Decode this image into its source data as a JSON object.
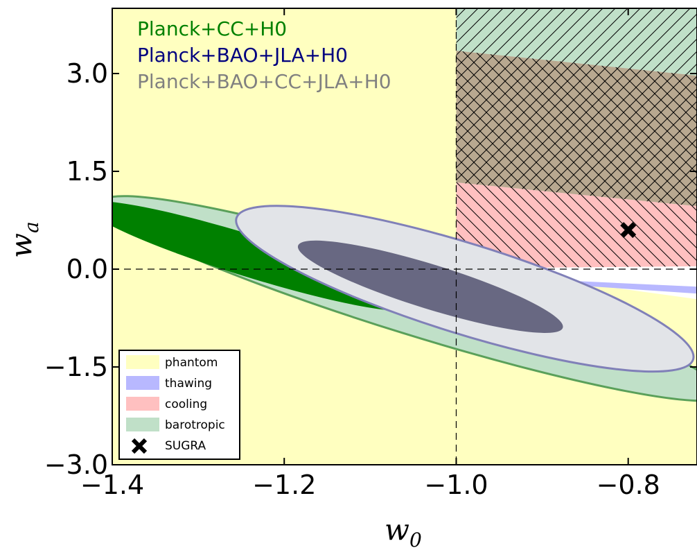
{
  "chart_data": {
    "type": "contour",
    "xlabel": "w",
    "xlabel_sub": "0",
    "ylabel": "w",
    "ylabel_sub": "a",
    "xlim": [
      -1.4,
      -0.72
    ],
    "ylim": [
      -3.0,
      4.0
    ],
    "x_ticks": [
      -1.4,
      -1.2,
      -1.0,
      -0.8
    ],
    "x_tick_labels": [
      "−1.4",
      "−1.2",
      "−1.0",
      "−0.8"
    ],
    "y_ticks": [
      -3.0,
      -1.5,
      0.0,
      1.5,
      3.0
    ],
    "y_tick_labels": [
      "−3.0",
      "−1.5",
      "0.0",
      "1.5",
      "3.0"
    ],
    "reference_lines": {
      "x": -1.0,
      "y": 0.0,
      "style": "dashed"
    },
    "annotations": [
      {
        "text": "Planck+CC+H0",
        "color": "#008000"
      },
      {
        "text": "Planck+BAO+JLA+H0",
        "color": "#00007f"
      },
      {
        "text": "Planck+BAO+CC+JLA+H0",
        "color": "#808080"
      }
    ],
    "regions": [
      {
        "name": "phantom",
        "color": "#ffffc0",
        "description": "w0 < -1 and lower region"
      },
      {
        "name": "thawing",
        "color": "#b8b8ff"
      },
      {
        "name": "cooling",
        "color": "#ffc0c0",
        "hatch": "backslash"
      },
      {
        "name": "barotropic",
        "color": "#c0e0c8",
        "hatch": "slash"
      }
    ],
    "legend": {
      "placement": "lower-left",
      "entries": [
        {
          "label": "phantom",
          "swatch": "#ffffc0",
          "kind": "patch"
        },
        {
          "label": "thawing",
          "swatch": "#b8b8ff",
          "kind": "patch"
        },
        {
          "label": "cooling",
          "swatch": "#ffc0c0",
          "kind": "patch"
        },
        {
          "label": "barotropic",
          "swatch": "#c0e0c8",
          "kind": "patch"
        },
        {
          "label": "SUGRA",
          "swatch": "#000000",
          "kind": "marker"
        }
      ]
    },
    "points": [
      {
        "name": "SUGRA",
        "x": -0.8,
        "y": 0.6,
        "marker": "x"
      }
    ],
    "contours": [
      {
        "series": "Planck+CC+H0",
        "level": "95%",
        "center": [
          -1.05,
          -0.35
        ],
        "fill": "#c0e0c8",
        "stroke": "#5aa05a"
      },
      {
        "series": "Planck+CC+H0",
        "level": "68%",
        "center": [
          -1.18,
          0.15
        ],
        "fill": "#008000",
        "stroke": "none"
      },
      {
        "series": "Planck+BAO+JLA+H0",
        "level": "95%",
        "center": [
          -0.98,
          -0.25
        ],
        "fill": "#b0b0cc",
        "stroke": "#7070b0"
      },
      {
        "series": "Planck+BAO+CC+JLA+H0",
        "level": "95%",
        "center": [
          -1.0,
          -0.35
        ],
        "fill": "#e2e4e8",
        "stroke": "#8080b8"
      },
      {
        "series": "Planck+BAO+CC+JLA+H0",
        "level": "68%",
        "center": [
          -1.03,
          -0.25
        ],
        "fill": "#686882",
        "stroke": "none"
      }
    ]
  }
}
